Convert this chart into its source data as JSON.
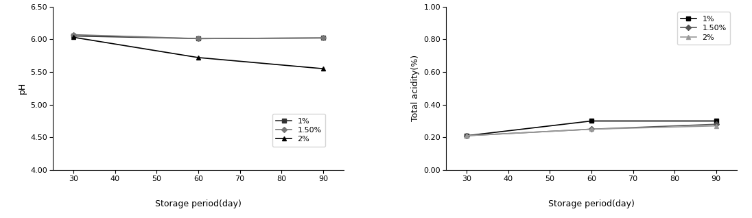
{
  "x": [
    30,
    60,
    90
  ],
  "ph": {
    "1%": [
      6.05,
      6.01,
      6.02
    ],
    "1.50%": [
      6.07,
      6.01,
      6.02
    ],
    "2%": [
      6.03,
      5.72,
      5.55
    ]
  },
  "acidity": {
    "1%": [
      0.21,
      0.3,
      0.3
    ],
    "1.50%": [
      0.21,
      0.25,
      0.28
    ],
    "2%": [
      0.21,
      0.25,
      0.27
    ]
  },
  "ph_ylim": [
    4.0,
    6.5
  ],
  "ph_yticks": [
    4.0,
    4.5,
    5.0,
    5.5,
    6.0,
    6.5
  ],
  "acidity_ylim": [
    0.0,
    1.0
  ],
  "acidity_yticks": [
    0.0,
    0.2,
    0.4,
    0.6,
    0.8,
    1.0
  ],
  "xlim": [
    25,
    95
  ],
  "xticks": [
    30,
    40,
    50,
    60,
    70,
    80,
    90
  ],
  "xlabel": "Storage period(day)",
  "ph_ylabel": "pH",
  "acidity_ylabel": "Total acidity(%)",
  "legend_labels": [
    "1%",
    "1.50%",
    "2%"
  ],
  "line_colors_ph": [
    "#333333",
    "#777777",
    "#000000"
  ],
  "line_colors_ac": [
    "#000000",
    "#555555",
    "#999999"
  ],
  "markers": [
    "s",
    "D",
    "^"
  ],
  "marker_size": 4,
  "line_width": 1.2
}
